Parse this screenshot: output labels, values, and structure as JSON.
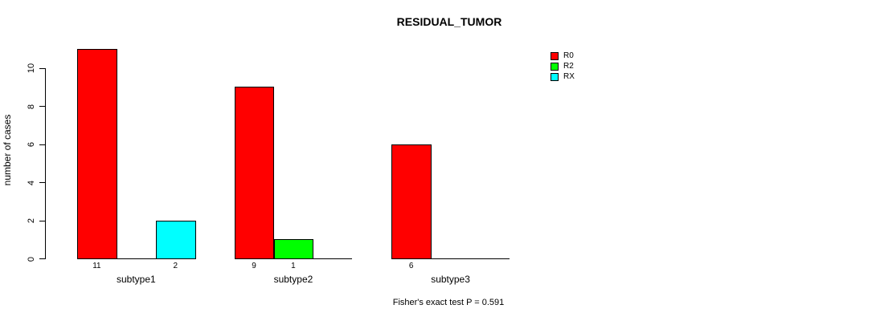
{
  "chart_data": {
    "type": "bar",
    "title": "RESIDUAL_TUMOR",
    "ylabel": "number of cases",
    "xlabel": "",
    "categories": [
      "subtype1",
      "subtype2",
      "subtype3"
    ],
    "series": [
      {
        "name": "R0",
        "color": "#ff0000",
        "values": [
          11,
          9,
          6
        ]
      },
      {
        "name": "R2",
        "color": "#00ff00",
        "values": [
          0,
          1,
          0
        ]
      },
      {
        "name": "RX",
        "color": "#00ffff",
        "values": [
          2,
          0,
          0
        ]
      }
    ],
    "yticks": [
      0,
      2,
      4,
      6,
      8,
      10
    ],
    "ylim": [
      0,
      11
    ],
    "grid": false,
    "legend_position": "top-right",
    "value_labels": "shown under non-zero bars",
    "annotation": "Fisher's exact test P = 0.591"
  }
}
